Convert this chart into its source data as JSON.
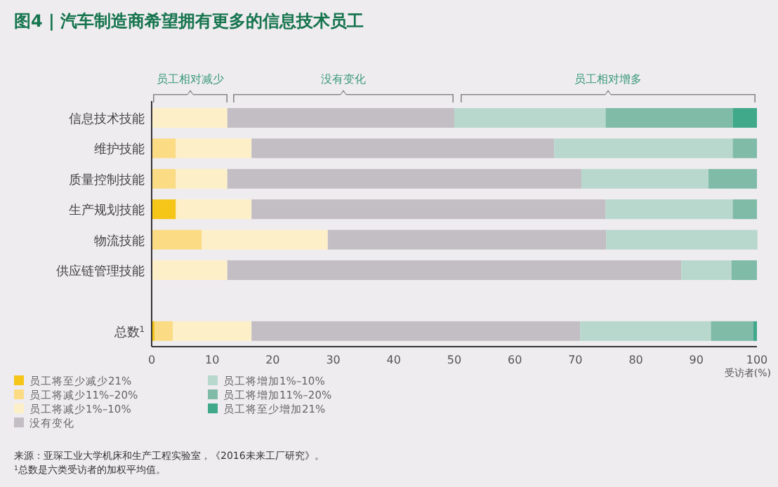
{
  "chart_data": {
    "type": "bar",
    "orientation": "horizontal",
    "stacked": true,
    "title": "图4 | 汽车制造商希望拥有更多的信息技术员工",
    "xlabel": "受访者(%)",
    "categories": [
      "信息技术技能",
      "维护技能",
      "质量控制技能",
      "生产规划技能",
      "物流技能",
      "供应链管理技能",
      null,
      "总数$^{1}$"
    ],
    "series": [
      {
        "name": "员工将至少减少21%",
        "color": "#f5c518",
        "values": [
          0,
          0,
          0,
          4,
          0,
          0,
          null,
          0.5
        ]
      },
      {
        "name": "员工将减少11%–20%",
        "color": "#fbdc85",
        "values": [
          0,
          4,
          4,
          0,
          8.3,
          0,
          null,
          3
        ]
      },
      {
        "name": "员工将减少1%–10%",
        "color": "#fdf0c9",
        "values": [
          12.5,
          12.5,
          8.5,
          12.5,
          20.8,
          12.5,
          null,
          13
        ]
      },
      {
        "name": "没有变化",
        "color": "#c2bec3",
        "values": [
          37.5,
          50,
          58.5,
          58.5,
          46,
          75,
          null,
          54.3
        ]
      },
      {
        "name": "员工将增加1%–10%",
        "color": "#b9d8cd",
        "values": [
          25,
          29.5,
          21,
          21,
          25,
          8.3,
          null,
          21.6
        ]
      },
      {
        "name": "员工将增加11%–20%",
        "color": "#7fbba6",
        "values": [
          21,
          4,
          8,
          4,
          0,
          4.2,
          null,
          7
        ]
      },
      {
        "name": "员工将至少增加21%",
        "color": "#3fa98a",
        "values": [
          4,
          0,
          0,
          0,
          0,
          0,
          null,
          0.6
        ]
      }
    ],
    "xlim": [
      0,
      100
    ],
    "xticks": [
      0,
      10,
      20,
      30,
      40,
      50,
      60,
      70,
      80,
      90,
      100
    ],
    "legend": "bottom left",
    "annotations": [
      "员工相对减少",
      "没有变化",
      "员工相对增多",
      "来源：亚琛工业大学机床和生产工程实验室，《2016未来工厂研究》。",
      "$^{1}$总数是六类受访者的加权平均值。"
    ]
  }
}
